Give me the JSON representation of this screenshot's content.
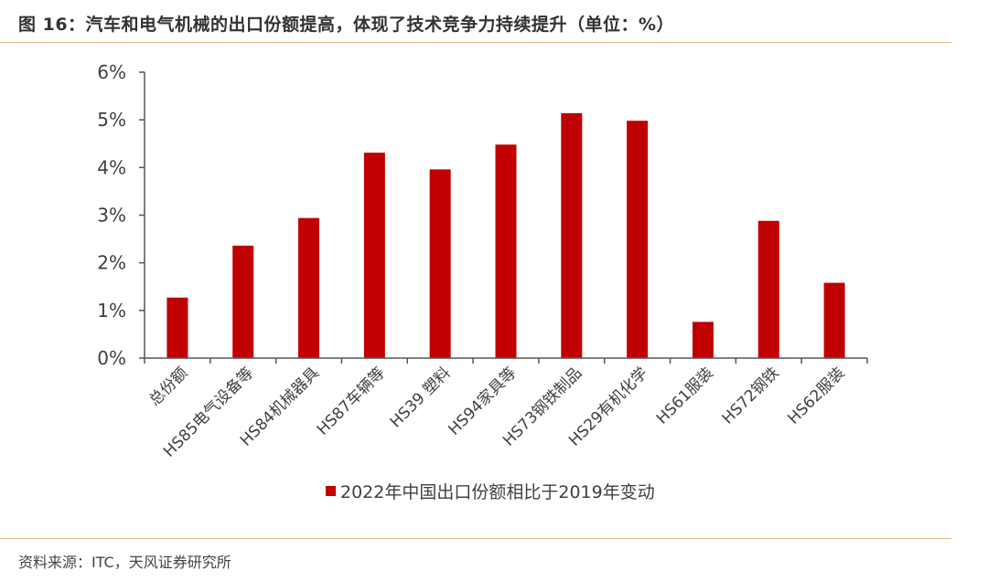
{
  "figure": {
    "title": "图 16：汽车和电气机械的出口份额提高，体现了技术竞争力持续提升（单位：%）",
    "source": "资料来源：ITC，天风证券研究所"
  },
  "chart_data": {
    "type": "bar",
    "title": "",
    "xlabel": "",
    "ylabel": "",
    "categories": [
      "总份额",
      "HS85电气设备等",
      "HS84机械器具",
      "HS87车辆等",
      "HS39 塑料",
      "HS94家具等",
      "HS73钢铁制品",
      "HS29有机化学",
      "HS61服装",
      "HS72钢铁",
      "HS62服装"
    ],
    "series": [
      {
        "name": "2022年中国出口份额相比于2019年变动",
        "values": [
          1.27,
          2.36,
          2.94,
          4.31,
          3.96,
          4.48,
          5.14,
          4.98,
          0.76,
          2.88,
          1.58
        ]
      }
    ],
    "ylim": [
      0,
      6
    ],
    "yticks": [
      "0%",
      "1%",
      "2%",
      "3%",
      "4%",
      "5%",
      "6%"
    ],
    "ytick_values": [
      0,
      1,
      2,
      3,
      4,
      5,
      6
    ],
    "bar_color": "#c00000",
    "grid": false,
    "legend_position": "bottom-center"
  }
}
